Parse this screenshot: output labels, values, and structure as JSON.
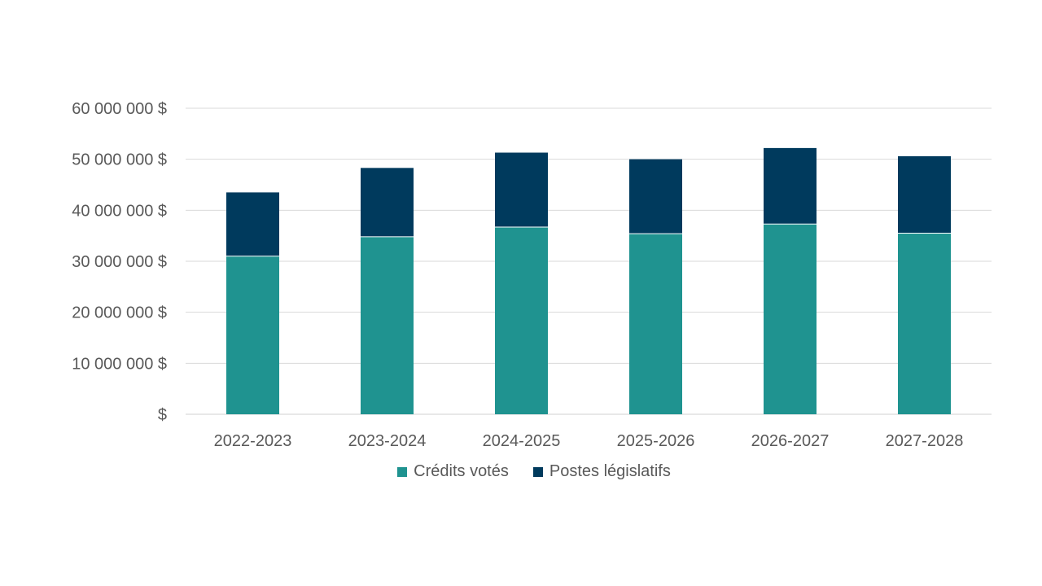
{
  "chart_data": {
    "type": "bar",
    "stacked": true,
    "categories": [
      "2022-2023",
      "2023-2024",
      "2024-2025",
      "2025-2026",
      "2026-2027",
      "2027-2028"
    ],
    "series": [
      {
        "name": "Crédits votés",
        "color": "#1F9390",
        "values": [
          31000000,
          34800000,
          36700000,
          35400000,
          37300000,
          35500000
        ]
      },
      {
        "name": "Postes législatifs",
        "color": "#003A5D",
        "values": [
          12500000,
          13500000,
          14600000,
          14600000,
          14900000,
          15100000
        ]
      }
    ],
    "y_ticks": [
      "$",
      "10 000 000 $",
      "20 000 000 $",
      "30 000 000 $",
      "40 000 000 $",
      "50 000 000 $",
      "60 000 000 $"
    ],
    "ylim": [
      0,
      60000000
    ],
    "grid": true,
    "legend_position": "bottom"
  }
}
